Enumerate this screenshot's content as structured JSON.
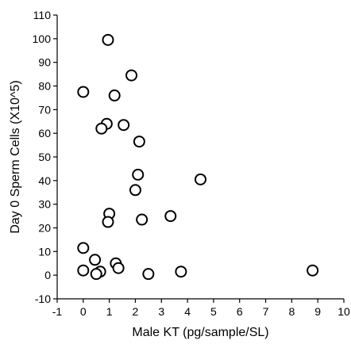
{
  "chart_data": {
    "type": "scatter",
    "xlabel": "Male KT (pg/sample/SL)",
    "ylabel": "Day 0 Sperm Cells (X10^5)",
    "xlim": [
      -1,
      10
    ],
    "ylim": [
      -10,
      110
    ],
    "xticks": [
      "-1",
      "0",
      "1",
      "2",
      "3",
      "4",
      "5",
      "6",
      "7",
      "8",
      "9",
      "10"
    ],
    "yticks": [
      "-10",
      "0",
      "10",
      "20",
      "30",
      "40",
      "50",
      "60",
      "70",
      "80",
      "90",
      "100",
      "110"
    ],
    "grid": false,
    "marker": "open-circle",
    "series": [
      {
        "points": [
          {
            "x": 0.95,
            "y": 99.5
          },
          {
            "x": 1.85,
            "y": 84.5
          },
          {
            "x": 0.0,
            "y": 77.5
          },
          {
            "x": 1.2,
            "y": 76.0
          },
          {
            "x": 0.9,
            "y": 64.0
          },
          {
            "x": 0.7,
            "y": 62.0
          },
          {
            "x": 1.55,
            "y": 63.5
          },
          {
            "x": 2.15,
            "y": 56.5
          },
          {
            "x": 2.1,
            "y": 42.5
          },
          {
            "x": 4.5,
            "y": 40.5
          },
          {
            "x": 2.0,
            "y": 36.0
          },
          {
            "x": 1.0,
            "y": 26.0
          },
          {
            "x": 3.35,
            "y": 25.0
          },
          {
            "x": 0.95,
            "y": 22.5
          },
          {
            "x": 2.25,
            "y": 23.5
          },
          {
            "x": 0.0,
            "y": 11.5
          },
          {
            "x": 0.45,
            "y": 6.5
          },
          {
            "x": 1.25,
            "y": 5.0
          },
          {
            "x": 1.35,
            "y": 3.0
          },
          {
            "x": 0.0,
            "y": 2.0
          },
          {
            "x": 0.65,
            "y": 1.5
          },
          {
            "x": 0.5,
            "y": 0.5
          },
          {
            "x": 2.5,
            "y": 0.5
          },
          {
            "x": 3.75,
            "y": 1.5
          },
          {
            "x": 8.8,
            "y": 2.0
          }
        ]
      }
    ]
  },
  "colors": {
    "axis": "#000000",
    "marker_stroke": "#000000",
    "marker_fill": "#ffffff"
  }
}
